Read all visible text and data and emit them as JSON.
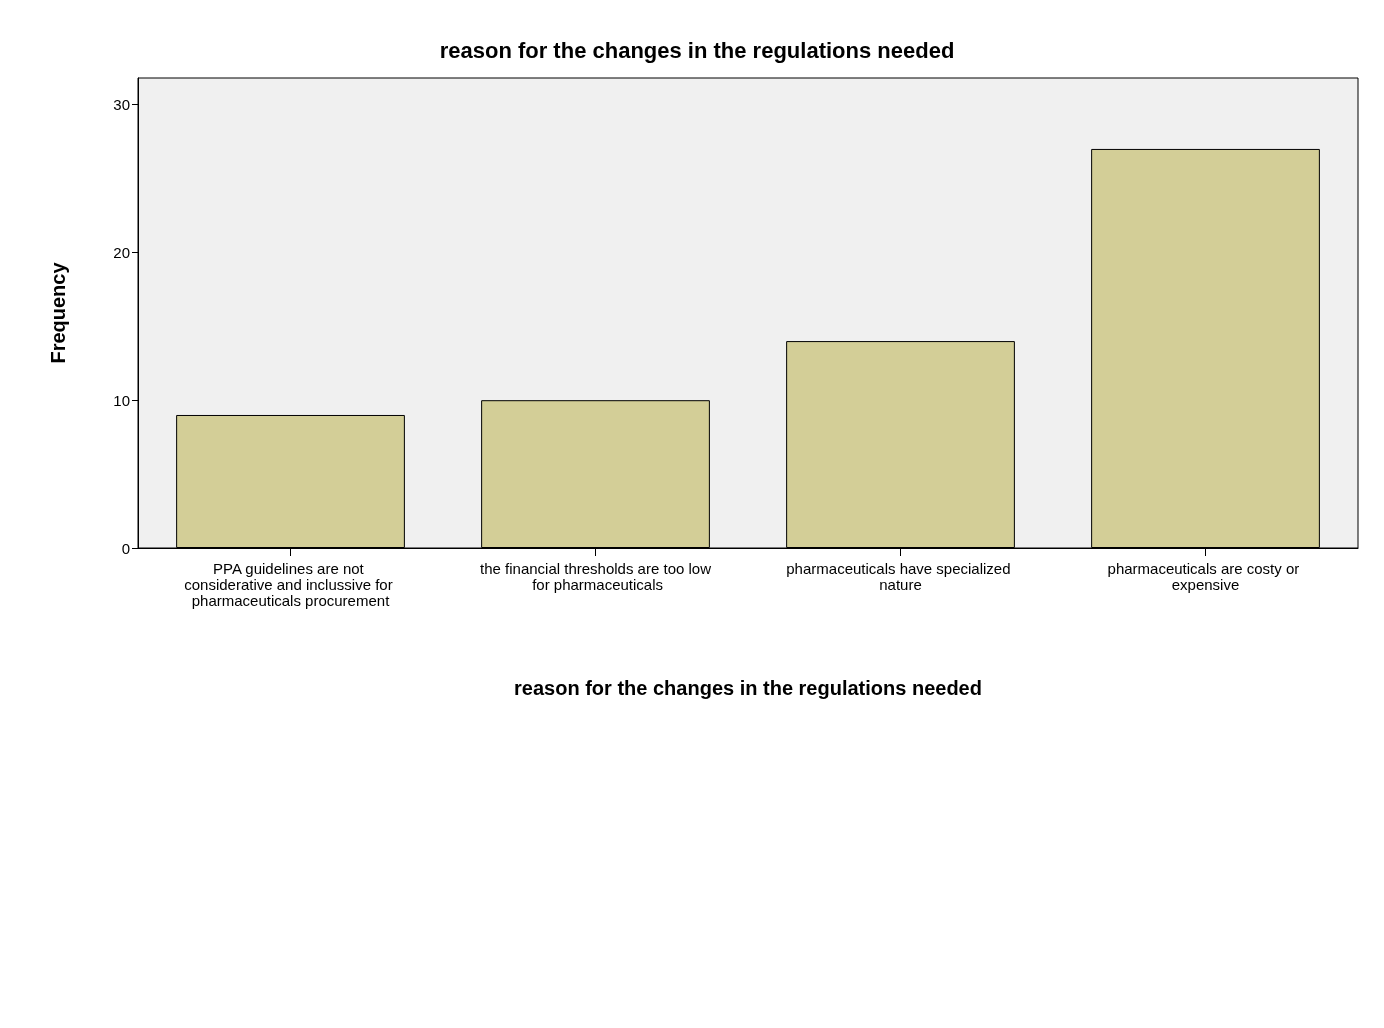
{
  "chart_data": {
    "type": "bar",
    "title": "reason for the changes in the regulations needed",
    "xlabel": "reason for the changes in the regulations needed",
    "ylabel": "Frequency",
    "categories": [
      "PPA guidelines are not considerative and inclussive for pharmaceuticals procurement",
      "the financial thresholds are too low for pharmaceuticals",
      "pharmaceuticals have specialized nature",
      "pharmaceuticals are costy or expensive"
    ],
    "values": [
      9,
      10,
      14,
      27
    ],
    "color": "#d3ce97",
    "ylim": [
      0,
      31.8
    ],
    "yticks": [
      0,
      10,
      20,
      30
    ],
    "grid": false
  }
}
